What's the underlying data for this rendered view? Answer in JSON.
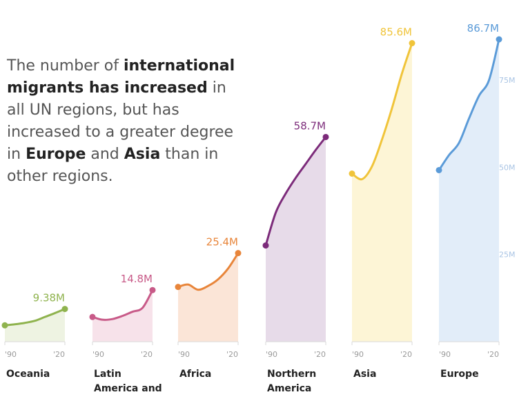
{
  "headline": {
    "p1": "The number of ",
    "b1": "international migrants has increased",
    "p2": " in all UN regions, but has increased to a greater degree in ",
    "b2": "Europe",
    "p3": " and ",
    "b3": "Asia",
    "p4": " than in other regions."
  },
  "chart_data": {
    "type": "area",
    "subtype": "small-multiples",
    "title": "",
    "x_tick_labels": [
      "'90",
      "'20"
    ],
    "y_tick_labels": [
      "25M",
      "50M",
      "75M"
    ],
    "y_ticks": [
      25,
      50,
      75
    ],
    "ylim": [
      0,
      90
    ],
    "x": [
      1990,
      1995,
      2000,
      2005,
      2010,
      2015,
      2020
    ],
    "series": [
      {
        "name": "Oceania",
        "label_lines": [
          "Oceania"
        ],
        "color": "#8fb34e",
        "fill": "#eef3e2",
        "end_label": "9.38M",
        "values": [
          4.7,
          5.0,
          5.4,
          6.0,
          7.1,
          8.2,
          9.38
        ]
      },
      {
        "name": "Latin America and the Caribbean",
        "label_lines": [
          "Latin",
          "America and"
        ],
        "color": "#c85a88",
        "fill": "#f7e2ea",
        "end_label": "14.8M",
        "values": [
          7.1,
          6.3,
          6.5,
          7.4,
          8.6,
          9.7,
          14.8
        ]
      },
      {
        "name": "Africa",
        "label_lines": [
          "Africa"
        ],
        "color": "#e8853a",
        "fill": "#fbe5d7",
        "end_label": "25.4M",
        "values": [
          15.7,
          16.4,
          14.9,
          16.0,
          17.9,
          21.0,
          25.4
        ]
      },
      {
        "name": "Northern America",
        "label_lines": [
          "Northern",
          "America"
        ],
        "color": "#7c2b7a",
        "fill": "#e7dbe9",
        "end_label": "58.7M",
        "values": [
          27.6,
          37.0,
          42.5,
          47.0,
          51.0,
          55.0,
          58.7
        ]
      },
      {
        "name": "Asia",
        "label_lines": [
          "Asia"
        ],
        "color": "#f0c43a",
        "fill": "#fdf5d6",
        "end_label": "85.6M",
        "values": [
          48.2,
          46.6,
          50.3,
          58.0,
          67.0,
          77.0,
          85.6
        ]
      },
      {
        "name": "Europe",
        "label_lines": [
          "Europe"
        ],
        "color": "#5b9bd8",
        "fill": "#e2edf9",
        "end_label": "86.7M",
        "values": [
          49.2,
          53.5,
          57.0,
          64.0,
          70.5,
          75.0,
          86.7
        ]
      }
    ]
  }
}
